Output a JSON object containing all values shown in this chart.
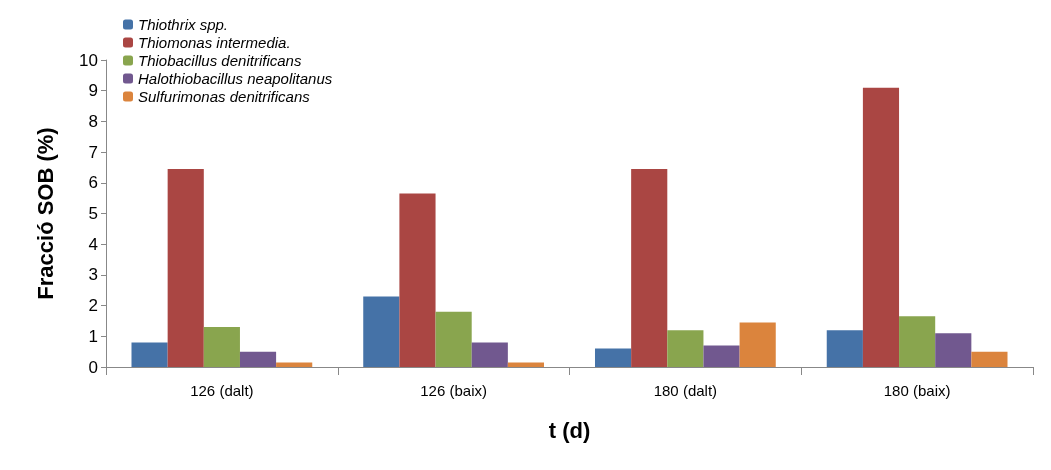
{
  "chart_data": {
    "type": "bar",
    "xlabel": "t (d)",
    "ylabel": "Fracció SOB (%)",
    "categories": [
      "126 (dalt)",
      "126 (baix)",
      "180 (dalt)",
      "180 (baix)"
    ],
    "series": [
      {
        "name": "Thiothrix spp.",
        "color": "#4572a7",
        "values": [
          0.8,
          2.3,
          0.6,
          1.2
        ]
      },
      {
        "name": "Thiomonas intermedia.",
        "color": "#aa4643",
        "values": [
          6.45,
          5.65,
          6.45,
          9.1
        ]
      },
      {
        "name": "Thiobacillus denitrificans",
        "color": "#89a54e",
        "values": [
          1.3,
          1.8,
          1.2,
          1.65
        ]
      },
      {
        "name": "Halothiobacillus neapolitanus",
        "color": "#71588f",
        "values": [
          0.5,
          0.8,
          0.7,
          1.1
        ]
      },
      {
        "name": "Sulfurimonas denitrificans",
        "color": "#db843d",
        "values": [
          0.15,
          0.15,
          1.45,
          0.5
        ]
      }
    ],
    "ylim": [
      0,
      10
    ],
    "yticks": [
      0,
      1,
      2,
      3,
      4,
      5,
      6,
      7,
      8,
      9,
      10
    ],
    "grid": false,
    "legend": "top left"
  }
}
